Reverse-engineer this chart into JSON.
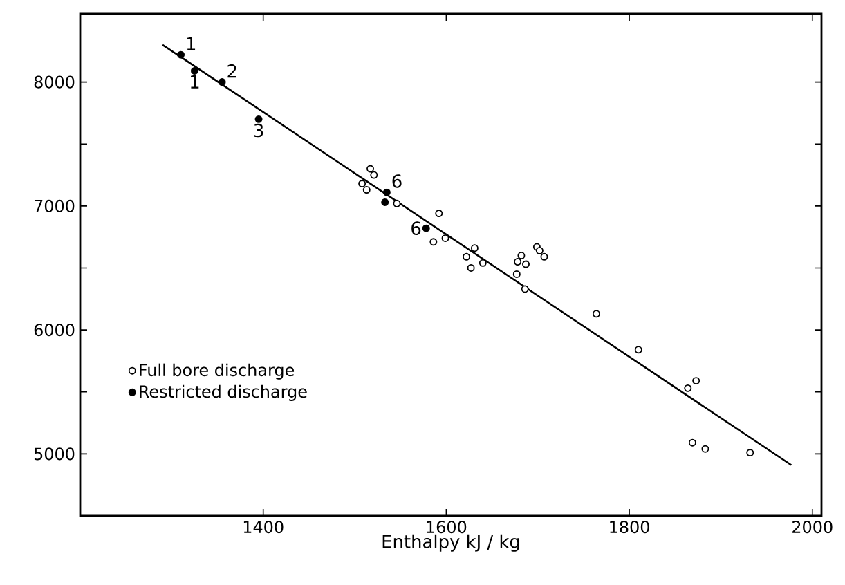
{
  "chart_data": {
    "type": "scatter",
    "xlabel": "Enthalpy  kJ / kg",
    "xlim": [
      1200,
      2010
    ],
    "ylim": [
      4500,
      8550
    ],
    "xticks": [
      1400,
      1600,
      1800,
      2000
    ],
    "yticks": [
      5000,
      {
        "value": 5500,
        "label": null
      },
      6000,
      {
        "value": 6500,
        "label": null
      },
      7000,
      {
        "value": 7500,
        "label": null
      },
      8000
    ],
    "legend": "bottom left",
    "grid": false,
    "series": [
      {
        "name": "Full bore discharge",
        "color": "#000000",
        "marker": "circle",
        "x": [
          1517,
          1521,
          1508,
          1513,
          1546,
          1592,
          1586,
          1599,
          1631,
          1622,
          1627,
          1640,
          1682,
          1678,
          1687,
          1677,
          1686,
          1699,
          1702,
          1707,
          1764,
          1810,
          1873,
          1864,
          1869,
          1883,
          1932
        ],
        "values": [
          7300,
          7250,
          7180,
          7130,
          7020,
          6940,
          6710,
          6740,
          6660,
          6590,
          6500,
          6540,
          6600,
          6550,
          6530,
          6450,
          6330,
          6670,
          6640,
          6590,
          6130,
          5840,
          5590,
          5530,
          5090,
          5040,
          5010
        ]
      },
      {
        "name": "Restricted discharge",
        "color": "#000000",
        "marker": "circle",
        "x": [
          1310,
          1325,
          1355,
          1395,
          1535,
          1533,
          1578
        ],
        "values": [
          8220,
          8090,
          8000,
          7700,
          7110,
          7030,
          6820
        ]
      },
      {
        "type": "line",
        "color": "#000000",
        "marker": "none",
        "x": [
          1290,
          1977
        ],
        "values": [
          8300,
          4910
        ]
      }
    ],
    "annotations": [
      {
        "text": "1",
        "x": 1310,
        "y": 8220
      },
      {
        "text": "1",
        "x": 1325,
        "y": 8090
      },
      {
        "text": "2",
        "x": 1355,
        "y": 8000
      },
      {
        "text": "3",
        "x": 1395,
        "y": 7700
      },
      {
        "text": "6",
        "x": 1535,
        "y": 7110
      },
      {
        "text": "6",
        "x": 1578,
        "y": 6820
      }
    ]
  }
}
